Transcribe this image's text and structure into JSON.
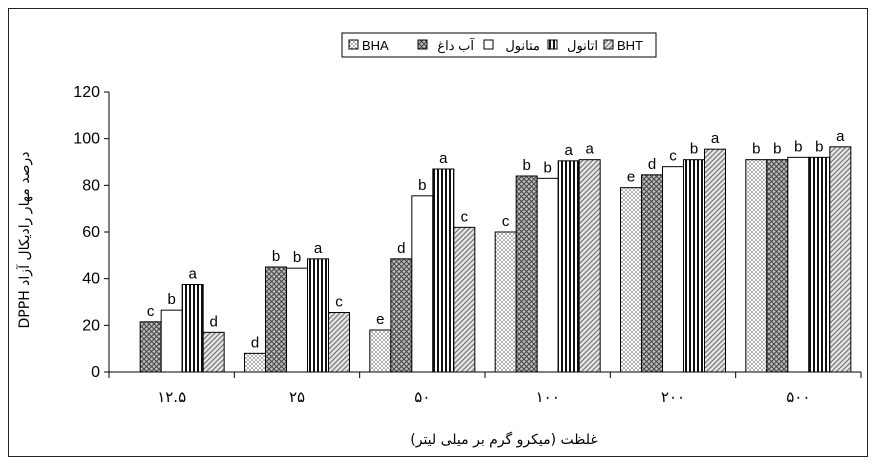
{
  "chart_data": {
    "type": "bar",
    "title": "",
    "xlabel": "غلظت (میکرو گرم بر میلی لیتر)",
    "ylabel": "درصد مهار رادیکال آزاد DPPH",
    "ylim": [
      0,
      120
    ],
    "yticks": [
      0,
      20,
      40,
      60,
      80,
      100,
      120
    ],
    "categories": [
      "۱۲.۵",
      "۲۵",
      "۵۰",
      "۱۰۰",
      "۲۰۰",
      "۵۰۰"
    ],
    "legend_position": "top-center",
    "series": [
      {
        "name": "BHA",
        "pattern": "dots",
        "values": [
          null,
          8,
          18,
          60,
          79,
          91
        ],
        "labels": [
          "",
          "d",
          "e",
          "c",
          "e",
          "b"
        ]
      },
      {
        "name": "آب داغ",
        "pattern": "crosshatch",
        "values": [
          21.5,
          45,
          48.5,
          84,
          84.5,
          91
        ],
        "labels": [
          "c",
          "b",
          "d",
          "b",
          "d",
          "b"
        ]
      },
      {
        "name": "متانول",
        "pattern": "white",
        "values": [
          26.5,
          44.5,
          75.5,
          83,
          88,
          92
        ],
        "labels": [
          "b",
          "b",
          "b",
          "b",
          "c",
          "b"
        ]
      },
      {
        "name": "اتانول",
        "pattern": "vertical",
        "values": [
          37.5,
          48.5,
          87,
          90.5,
          91,
          92
        ],
        "labels": [
          "a",
          "a",
          "a",
          "a",
          "b",
          "b"
        ]
      },
      {
        "name": "BHT",
        "pattern": "diagonal",
        "values": [
          17,
          25.5,
          62,
          91,
          95.5,
          96.5
        ],
        "labels": [
          "d",
          "c",
          "c",
          "a",
          "a",
          "a"
        ]
      }
    ]
  }
}
